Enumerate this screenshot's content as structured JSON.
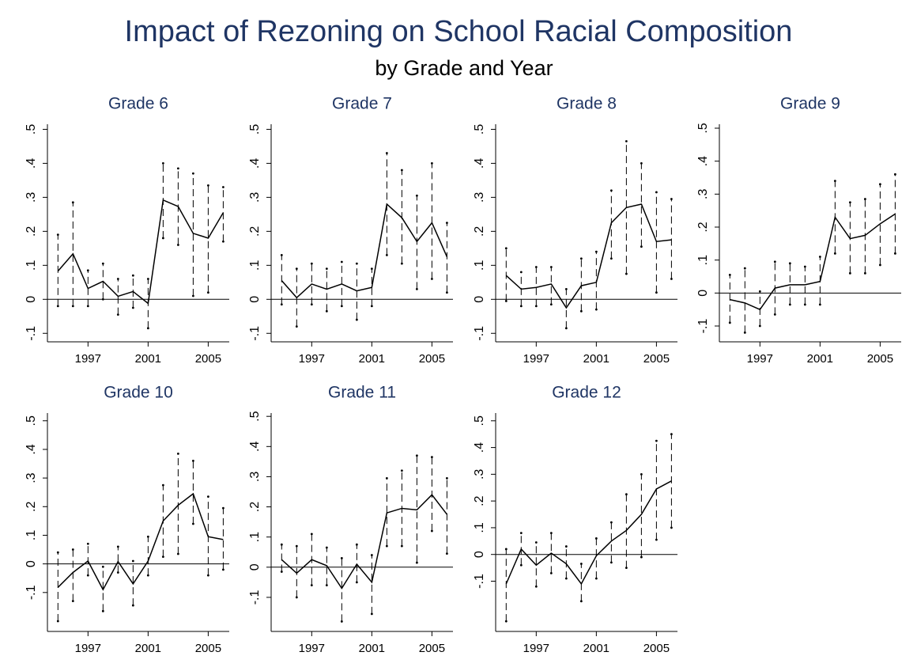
{
  "title": "Impact of Rezoning on School Racial Composition",
  "subtitle": "by Grade and Year",
  "chart_data": [
    {
      "type": "line",
      "title": "Grade 6",
      "color": "#000000",
      "x": [
        1995,
        1996,
        1997,
        1998,
        1999,
        2000,
        2001,
        2002,
        2003,
        2004,
        2005,
        2006
      ],
      "values": [
        0.083,
        0.134,
        0.032,
        0.053,
        0.009,
        0.023,
        -0.012,
        0.292,
        0.273,
        0.194,
        0.18,
        0.255
      ],
      "lower": [
        -0.02,
        -0.02,
        -0.02,
        0,
        -0.045,
        -0.025,
        -0.085,
        0.18,
        0.16,
        0.01,
        0.02,
        0.17
      ],
      "upper": [
        0.19,
        0.285,
        0.085,
        0.105,
        0.06,
        0.07,
        0.06,
        0.4,
        0.385,
        0.37,
        0.335,
        0.33
      ],
      "xlim": [
        1994.3,
        2006.4
      ],
      "ylim": [
        -0.125,
        0.515
      ],
      "xticks": [
        1997,
        2001,
        2005
      ],
      "yticks": [
        {
          "value": -0.1,
          "label": "-.1"
        },
        0,
        {
          "value": 0.1,
          "label": ".1"
        },
        {
          "value": 0.2,
          "label": ".2"
        },
        {
          "value": 0.3,
          "label": ".3"
        },
        {
          "value": 0.4,
          "label": ".4"
        },
        {
          "value": 0.5,
          "label": ".5"
        }
      ],
      "hline": 0
    },
    {
      "type": "line",
      "title": "Grade 7",
      "color": "#000000",
      "x": [
        1995,
        1996,
        1997,
        1998,
        1999,
        2000,
        2001,
        2002,
        2003,
        2004,
        2005,
        2006
      ],
      "values": [
        0.055,
        0.005,
        0.045,
        0.03,
        0.045,
        0.025,
        0.035,
        0.28,
        0.24,
        0.17,
        0.225,
        0.125
      ],
      "lower": [
        -0.015,
        -0.08,
        -0.015,
        -0.035,
        -0.02,
        -0.06,
        -0.02,
        0.13,
        0.105,
        0.03,
        0.06,
        0.02
      ],
      "upper": [
        0.13,
        0.09,
        0.105,
        0.09,
        0.11,
        0.105,
        0.09,
        0.43,
        0.38,
        0.305,
        0.4,
        0.225
      ],
      "xlim": [
        1994.3,
        2006.4
      ],
      "ylim": [
        -0.125,
        0.515
      ],
      "xticks": [
        1997,
        2001,
        2005
      ],
      "yticks": [
        {
          "value": -0.1,
          "label": "-.1"
        },
        0,
        {
          "value": 0.1,
          "label": ".1"
        },
        {
          "value": 0.2,
          "label": ".2"
        },
        {
          "value": 0.3,
          "label": ".3"
        },
        {
          "value": 0.4,
          "label": ".4"
        },
        {
          "value": 0.5,
          "label": ".5"
        }
      ],
      "hline": 0
    },
    {
      "type": "line",
      "title": "Grade 8",
      "color": "#000000",
      "x": [
        1995,
        1996,
        1997,
        1998,
        1999,
        2000,
        2001,
        2002,
        2003,
        2004,
        2005,
        2006
      ],
      "values": [
        0.07,
        0.03,
        0.035,
        0.045,
        -0.025,
        0.04,
        0.05,
        0.225,
        0.27,
        0.28,
        0.17,
        0.175
      ],
      "lower": [
        -0.005,
        -0.02,
        -0.02,
        -0.015,
        -0.085,
        -0.035,
        -0.03,
        0.12,
        0.075,
        0.155,
        0.02,
        0.06
      ],
      "upper": [
        0.15,
        0.08,
        0.095,
        0.095,
        0.03,
        0.12,
        0.14,
        0.32,
        0.465,
        0.4,
        0.315,
        0.295
      ],
      "xlim": [
        1994.3,
        2006.4
      ],
      "ylim": [
        -0.125,
        0.515
      ],
      "xticks": [
        1997,
        2001,
        2005
      ],
      "yticks": [
        {
          "value": -0.1,
          "label": "-.1"
        },
        0,
        {
          "value": 0.1,
          "label": ".1"
        },
        {
          "value": 0.2,
          "label": ".2"
        },
        {
          "value": 0.3,
          "label": ".3"
        },
        {
          "value": 0.4,
          "label": ".4"
        },
        {
          "value": 0.5,
          "label": ".5"
        }
      ],
      "hline": 0
    },
    {
      "type": "line",
      "title": "Grade 9",
      "color": "#000000",
      "x": [
        1995,
        1996,
        1997,
        1998,
        1999,
        2000,
        2001,
        2002,
        2003,
        2004,
        2005,
        2006
      ],
      "values": [
        -0.02,
        -0.03,
        -0.05,
        0.015,
        0.025,
        0.025,
        0.035,
        0.23,
        0.165,
        0.175,
        0.21,
        0.24
      ],
      "lower": [
        -0.09,
        -0.12,
        -0.1,
        -0.065,
        -0.035,
        -0.035,
        -0.035,
        0.12,
        0.06,
        0.06,
        0.085,
        0.12
      ],
      "upper": [
        0.055,
        0.075,
        0.005,
        0.095,
        0.09,
        0.08,
        0.11,
        0.34,
        0.275,
        0.285,
        0.33,
        0.36
      ],
      "xlim": [
        1994.3,
        2006.4
      ],
      "ylim": [
        -0.148,
        0.512
      ],
      "xticks": [
        1997,
        2001,
        2005
      ],
      "yticks": [
        {
          "value": -0.1,
          "label": "-.1"
        },
        0,
        {
          "value": 0.1,
          "label": ".1"
        },
        {
          "value": 0.2,
          "label": ".2"
        },
        {
          "value": 0.3,
          "label": ".3"
        },
        {
          "value": 0.4,
          "label": ".4"
        },
        {
          "value": 0.5,
          "label": ".5"
        }
      ],
      "hline": 0
    },
    {
      "type": "line",
      "title": "Grade 10",
      "color": "#000000",
      "x": [
        1995,
        1996,
        1997,
        1998,
        1999,
        2000,
        2001,
        2002,
        2003,
        2004,
        2005,
        2006
      ],
      "values": [
        -0.082,
        -0.03,
        0.01,
        -0.09,
        0.008,
        -0.07,
        0.01,
        0.15,
        0.205,
        0.245,
        0.095,
        0.085
      ],
      "lower": [
        -0.2,
        -0.13,
        -0.04,
        -0.165,
        -0.03,
        -0.145,
        -0.04,
        0.025,
        0.035,
        0.14,
        -0.04,
        -0.02
      ],
      "upper": [
        0.04,
        0.05,
        0.07,
        -0.01,
        0.06,
        0.01,
        0.095,
        0.275,
        0.385,
        0.36,
        0.235,
        0.195
      ],
      "xlim": [
        1994.3,
        2006.4
      ],
      "ylim": [
        -0.236,
        0.527
      ],
      "xticks": [
        1997,
        2001,
        2005
      ],
      "yticks": [
        {
          "value": -0.1,
          "label": "-.1"
        },
        0,
        {
          "value": 0.1,
          "label": ".1"
        },
        {
          "value": 0.2,
          "label": ".2"
        },
        {
          "value": 0.3,
          "label": ".3"
        },
        {
          "value": 0.4,
          "label": ".4"
        },
        {
          "value": 0.5,
          "label": ".5"
        }
      ],
      "hline": 0
    },
    {
      "type": "line",
      "title": "Grade 11",
      "color": "#000000",
      "x": [
        1995,
        1996,
        1997,
        1998,
        1999,
        2000,
        2001,
        2002,
        2003,
        2004,
        2005,
        2006
      ],
      "values": [
        0.025,
        -0.02,
        0.025,
        0.005,
        -0.07,
        0.01,
        -0.05,
        0.18,
        0.195,
        0.19,
        0.24,
        0.175
      ],
      "lower": [
        -0.015,
        -0.1,
        -0.06,
        -0.06,
        -0.18,
        -0.05,
        -0.155,
        0.07,
        0.07,
        0.015,
        0.12,
        0.045
      ],
      "upper": [
        0.075,
        0.07,
        0.11,
        0.065,
        0.03,
        0.075,
        0.04,
        0.295,
        0.32,
        0.37,
        0.365,
        0.295
      ],
      "xlim": [
        1994.3,
        2006.4
      ],
      "ylim": [
        -0.213,
        0.511
      ],
      "xticks": [
        1997,
        2001,
        2005
      ],
      "yticks": [
        {
          "value": -0.1,
          "label": "-.1"
        },
        0,
        {
          "value": 0.1,
          "label": ".1"
        },
        {
          "value": 0.2,
          "label": ".2"
        },
        {
          "value": 0.3,
          "label": ".3"
        },
        {
          "value": 0.4,
          "label": ".4"
        },
        {
          "value": 0.5,
          "label": ".5"
        }
      ],
      "hline": 0
    },
    {
      "type": "line",
      "title": "Grade 12",
      "color": "#000000",
      "x": [
        1995,
        1996,
        1997,
        1998,
        1999,
        2000,
        2001,
        2002,
        2003,
        2004,
        2005,
        2006
      ],
      "values": [
        -0.11,
        0.02,
        -0.04,
        0.005,
        -0.035,
        -0.11,
        -0.005,
        0.05,
        0.09,
        0.15,
        0.245,
        0.275
      ],
      "lower": [
        -0.25,
        -0.04,
        -0.12,
        -0.07,
        -0.09,
        -0.175,
        -0.09,
        -0.03,
        -0.05,
        -0.01,
        0.055,
        0.1
      ],
      "upper": [
        0.02,
        0.08,
        0.045,
        0.08,
        0.03,
        -0.035,
        0.06,
        0.12,
        0.225,
        0.3,
        0.425,
        0.45
      ],
      "xlim": [
        1994.3,
        2006.4
      ],
      "ylim": [
        -0.288,
        0.529
      ],
      "xticks": [
        1997,
        2001,
        2005
      ],
      "yticks": [
        {
          "value": -0.1,
          "label": "-.1"
        },
        0,
        {
          "value": 0.1,
          "label": ".1"
        },
        {
          "value": 0.2,
          "label": ".2"
        },
        {
          "value": 0.3,
          "label": ".3"
        },
        {
          "value": 0.4,
          "label": ".4"
        },
        {
          "value": 0.5,
          "label": ".5"
        }
      ],
      "hline": 0
    }
  ]
}
